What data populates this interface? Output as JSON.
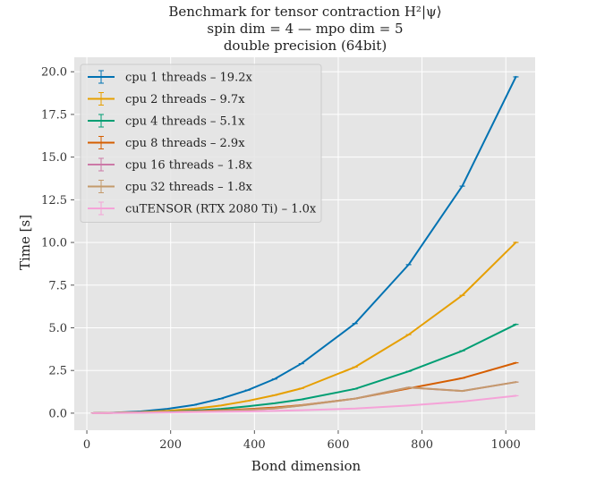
{
  "chart_data": {
    "type": "line",
    "title_lines": [
      "Benchmark for tensor contraction H²|ψ⟩",
      "spin dim = 4 — mpo dim = 5",
      "double precision (64bit)"
    ],
    "xlabel": "Bond dimension",
    "ylabel": "Time [s]",
    "xlim": [
      -30,
      1070
    ],
    "ylim": [
      -1.0,
      20.85
    ],
    "xticks": [
      0,
      200,
      400,
      600,
      800,
      1000
    ],
    "yticks": [
      0.0,
      2.5,
      5.0,
      7.5,
      10.0,
      12.5,
      15.0,
      17.5,
      20.0
    ],
    "xtick_labels": [
      "0",
      "200",
      "400",
      "600",
      "800",
      "1000"
    ],
    "ytick_labels": [
      "0.0",
      "2.5",
      "5.0",
      "7.5",
      "10.0",
      "12.5",
      "15.0",
      "17.5",
      "20.0"
    ],
    "grid": true,
    "background": "#e5e5e5",
    "legend_position": "top-left",
    "x": [
      16,
      32,
      64,
      128,
      192,
      256,
      320,
      384,
      448,
      512,
      640,
      768,
      896,
      1024
    ],
    "series": [
      {
        "name": "cpu 1 threads – 19.2x",
        "color": "#0072b2",
        "values": [
          0.0,
          0.01,
          0.03,
          0.1,
          0.25,
          0.48,
          0.85,
          1.35,
          2.0,
          2.9,
          5.25,
          8.7,
          13.3,
          19.7
        ]
      },
      {
        "name": "cpu 2 threads – 9.7x",
        "color": "#e69f00",
        "values": [
          0.0,
          0.01,
          0.02,
          0.06,
          0.14,
          0.26,
          0.45,
          0.72,
          1.05,
          1.45,
          2.7,
          4.6,
          6.9,
          10.0
        ]
      },
      {
        "name": "cpu 4 threads – 5.1x",
        "color": "#009e73",
        "values": [
          0.0,
          0.01,
          0.02,
          0.04,
          0.08,
          0.15,
          0.25,
          0.4,
          0.58,
          0.8,
          1.42,
          2.45,
          3.65,
          5.2
        ]
      },
      {
        "name": "cpu 8 threads – 2.9x",
        "color": "#d55e00",
        "values": [
          0.0,
          0.0,
          0.02,
          0.04,
          0.07,
          0.12,
          0.17,
          0.24,
          0.33,
          0.47,
          0.85,
          1.45,
          2.05,
          2.95
        ]
      },
      {
        "name": "cpu 16 threads – 1.8x",
        "color": "#cc79a7",
        "values": [
          0.0,
          0.0,
          0.02,
          0.04,
          0.07,
          0.1,
          0.14,
          0.2,
          0.28,
          0.45,
          0.85,
          1.5,
          1.3,
          1.82
        ]
      },
      {
        "name": "cpu 32 threads – 1.8x",
        "color": "#c49a6c",
        "values": [
          0.0,
          0.0,
          0.02,
          0.04,
          0.07,
          0.1,
          0.14,
          0.2,
          0.28,
          0.45,
          0.85,
          1.5,
          1.3,
          1.82
        ]
      },
      {
        "name": "cuTENSOR (RTX 2080 Ti) – 1.0x",
        "color": "#f5a3d8",
        "values": [
          0.0,
          0.0,
          0.01,
          0.02,
          0.04,
          0.06,
          0.08,
          0.1,
          0.13,
          0.17,
          0.27,
          0.45,
          0.68,
          1.02
        ]
      }
    ]
  }
}
